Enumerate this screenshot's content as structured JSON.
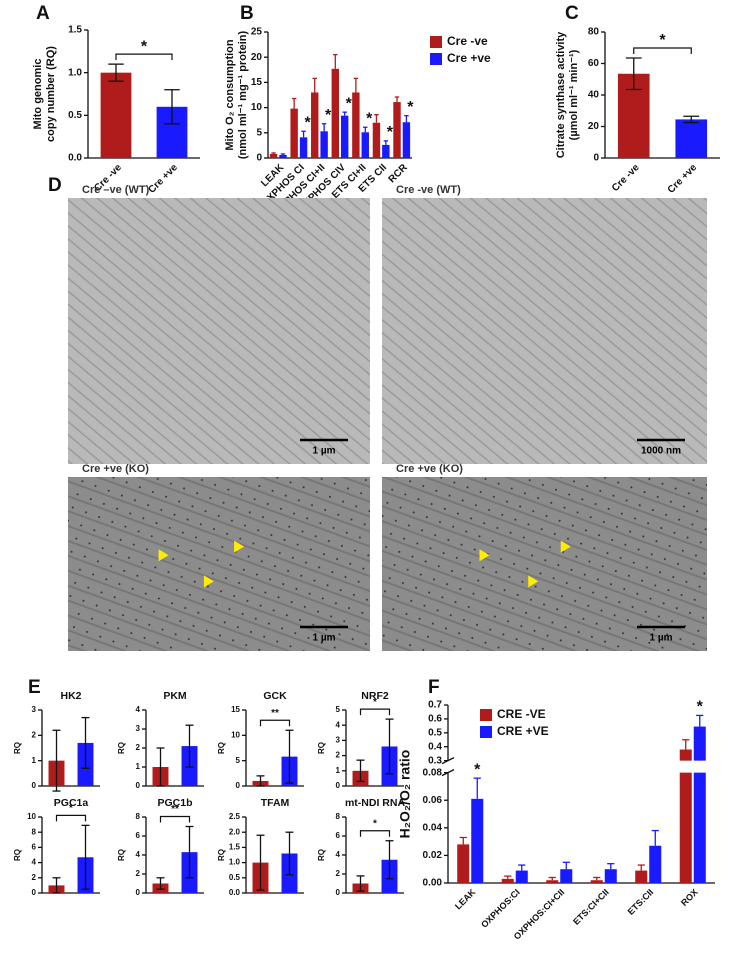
{
  "chart_data": [
    {
      "type": "bar",
      "panel": "A",
      "ylabel": [
        "Mito genomic",
        "copy number (RQ)"
      ],
      "categories": [
        "Cre -ve",
        "Cre +ve"
      ],
      "values": [
        1.0,
        0.6
      ],
      "errors": [
        0.1,
        0.2
      ],
      "colors": [
        "#b01c1c",
        "#1a1aff"
      ],
      "ylim": [
        0,
        1.5
      ],
      "yticks": [
        {
          "value": 0,
          "label": "0.0"
        },
        {
          "value": 0.5,
          "label": "0.5"
        },
        {
          "value": 1,
          "label": "1.0"
        },
        {
          "value": 1.5,
          "label": "1.5"
        }
      ],
      "significance": "*"
    },
    {
      "type": "grouped_bar",
      "panel": "B",
      "ylabel": [
        "Mito O₂ consumption",
        "(nmol ml⁻¹ mg⁻¹ protein)"
      ],
      "categories": [
        "LEAK",
        "OXPHOS CI",
        "OXPHOS CI+II",
        "OXPHOS CIV",
        "ETS CI+II",
        "ETS CII",
        "RCR"
      ],
      "series": [
        {
          "name": "Cre -ve",
          "color": "#b01c1c",
          "values": [
            0.8,
            9.8,
            13,
            17.7,
            13,
            7,
            11.1
          ],
          "errors": [
            0.2,
            2,
            2.8,
            2.8,
            2.8,
            1.6,
            1
          ]
        },
        {
          "name": "Cre +ve",
          "color": "#1a1aff",
          "values": [
            0.6,
            4.1,
            5.3,
            8.4,
            5.1,
            2.6,
            7.1
          ],
          "errors": [
            0.2,
            1.2,
            1.5,
            0.7,
            1,
            0.8,
            1.3
          ],
          "stars": [
            {
              "index": 1,
              "label": "*"
            },
            {
              "index": 2,
              "label": "*"
            },
            {
              "index": 3,
              "label": "*"
            },
            {
              "index": 4,
              "label": "*"
            },
            {
              "index": 5,
              "label": "*"
            },
            {
              "index": 6,
              "label": "*"
            }
          ]
        }
      ],
      "ylim": [
        0,
        25
      ],
      "yticks": [
        0,
        5,
        10,
        15,
        20,
        25
      ],
      "legend": "top-right"
    },
    {
      "type": "bar",
      "panel": "C",
      "ylabel": [
        "Citrate synthase activity",
        "(µmol ml⁻¹ min⁻¹)"
      ],
      "categories": [
        "Cre -ve",
        "Cre +ve"
      ],
      "values": [
        53.5,
        24.5
      ],
      "errors": [
        10,
        2
      ],
      "colors": [
        "#b01c1c",
        "#1a1aff"
      ],
      "ylim": [
        0,
        80
      ],
      "yticks": [
        0,
        20,
        40,
        60,
        80
      ],
      "significance": "*"
    },
    {
      "type": "bar",
      "panel": "E",
      "title": "HK2",
      "ylabel": "RQ",
      "values": [
        1,
        1.7
      ],
      "errors": [
        1.2,
        1
      ],
      "colors": [
        "#b01c1c",
        "#1a1aff"
      ],
      "ylim": [
        0,
        3
      ],
      "yticks": [
        0,
        1,
        2,
        3
      ]
    },
    {
      "type": "bar",
      "title": "PKM",
      "ylabel": "RQ",
      "values": [
        1,
        2.1
      ],
      "errors": [
        1,
        1.1
      ],
      "colors": [
        "#b01c1c",
        "#1a1aff"
      ],
      "ylim": [
        0,
        4
      ],
      "yticks": [
        0,
        1,
        2,
        3,
        4
      ]
    },
    {
      "type": "bar",
      "title": "GCK",
      "ylabel": "RQ",
      "values": [
        1,
        5.8
      ],
      "errors": [
        1,
        5.2
      ],
      "colors": [
        "#b01c1c",
        "#1a1aff"
      ],
      "ylim": [
        0,
        15
      ],
      "yticks": [
        0,
        5,
        10,
        15
      ],
      "significance": "**"
    },
    {
      "type": "bar",
      "title": "NRF2",
      "ylabel": "RQ",
      "values": [
        1,
        2.6
      ],
      "errors": [
        0.7,
        1.8
      ],
      "colors": [
        "#b01c1c",
        "#1a1aff"
      ],
      "ylim": [
        0,
        5
      ],
      "yticks": [
        0,
        1,
        2,
        3,
        4,
        5
      ],
      "significance": "*"
    },
    {
      "type": "bar",
      "title": "PGC1a",
      "ylabel": "RQ",
      "values": [
        1,
        4.7
      ],
      "errors": [
        1,
        4.2
      ],
      "colors": [
        "#b01c1c",
        "#1a1aff"
      ],
      "ylim": [
        0,
        10
      ],
      "yticks": [
        0,
        2,
        4,
        6,
        8,
        10
      ],
      "significance": "*"
    },
    {
      "type": "bar",
      "title": "PGC1b",
      "ylabel": "RQ",
      "values": [
        1,
        4.3
      ],
      "errors": [
        0.6,
        2.7
      ],
      "colors": [
        "#b01c1c",
        "#1a1aff"
      ],
      "ylim": [
        0,
        8
      ],
      "yticks": [
        0,
        2,
        4,
        6,
        8
      ],
      "significance": "**"
    },
    {
      "type": "bar",
      "title": "TFAM",
      "ylabel": "RQ",
      "values": [
        1,
        1.3
      ],
      "errors": [
        0.9,
        0.7
      ],
      "colors": [
        "#b01c1c",
        "#1a1aff"
      ],
      "ylim": [
        0,
        2.5
      ],
      "yticks": [
        {
          "value": 0,
          "label": "0.0"
        },
        {
          "value": 0.5,
          "label": "0.5"
        },
        {
          "value": 1,
          "label": "1.0"
        },
        {
          "value": 1.5,
          "label": "1.5"
        },
        {
          "value": 2,
          "label": "2.0"
        },
        {
          "value": 2.5,
          "label": "2.5"
        }
      ]
    },
    {
      "type": "bar",
      "title": "mt-NDI RNA",
      "ylabel": "RQ",
      "values": [
        1,
        3.5
      ],
      "errors": [
        0.8,
        2
      ],
      "colors": [
        "#b01c1c",
        "#1a1aff"
      ],
      "ylim": [
        0,
        8
      ],
      "yticks": [
        0,
        2,
        4,
        6,
        8
      ],
      "significance": "*"
    },
    {
      "type": "grouped_bar",
      "panel": "F",
      "ylabel": "H₂O₂/O₂ ratio",
      "categories": [
        "LEAK",
        "OXPHOS:CI",
        "OXPHOS:CI+CII",
        "ETS:CI+CII",
        "ETS:CII",
        "ROX"
      ],
      "series": [
        {
          "name": "CRE -VE",
          "color": "#b01c1c",
          "values": [
            0.028,
            0.003,
            0.002,
            0.002,
            0.009,
            0.38
          ],
          "errors": [
            0.005,
            0.002,
            0.002,
            0.002,
            0.004,
            0.07
          ]
        },
        {
          "name": "CRE +VE",
          "color": "#1a1aff",
          "values": [
            0.061,
            0.009,
            0.01,
            0.01,
            0.027,
            0.545
          ],
          "errors": [
            0.015,
            0.004,
            0.005,
            0.004,
            0.011,
            0.08
          ],
          "stars": [
            {
              "index": 0,
              "label": "*"
            },
            {
              "index": 5,
              "label": "*"
            }
          ]
        }
      ],
      "ylim": [
        0,
        0.08
      ],
      "yticks": [
        {
          "value": 0,
          "label": "0.00"
        },
        {
          "value": 0.02,
          "label": "0.02"
        },
        {
          "value": 0.04,
          "label": "0.04"
        },
        {
          "value": 0.06,
          "label": "0.06"
        },
        {
          "value": 0.08,
          "label": "0.08"
        }
      ],
      "y_break": {
        "ylim": [
          0.3,
          0.7
        ],
        "yticks": [
          0.3,
          0.4,
          0.5,
          0.6,
          0.7
        ]
      },
      "legend": "top-left"
    }
  ],
  "micrographs": {
    "panel": "D",
    "panels": [
      {
        "title": "Cre –ve (WT)",
        "scale_bar": "1 µm"
      },
      {
        "title": "Cre -ve (WT)",
        "scale_bar": "1000 nm"
      },
      {
        "title": "Cre +ve (KO)",
        "scale_bar": "1 µm"
      },
      {
        "title": "Cre +ve (KO)",
        "scale_bar": "1 µm"
      }
    ]
  }
}
